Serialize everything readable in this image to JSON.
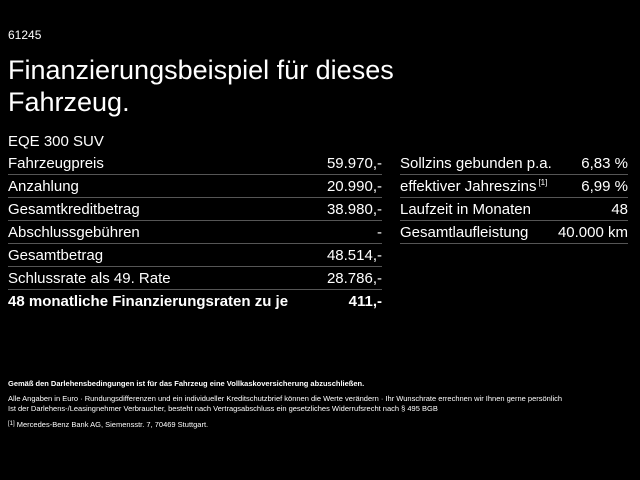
{
  "code": "61245",
  "title": "Finanzierungsbeispiel für dieses Fahrzeug.",
  "model": "EQE 300 SUV",
  "left_table": {
    "rows": [
      {
        "label": "Fahrzeugpreis",
        "value": "59.970,-"
      },
      {
        "label": "Anzahlung",
        "value": "20.990,-"
      },
      {
        "label": "Gesamtkreditbetrag",
        "value": "38.980,-"
      },
      {
        "label": "Abschlussgebühren",
        "value": "-"
      },
      {
        "label": "Gesamtbetrag",
        "value": "48.514,-"
      },
      {
        "label": "Schlussrate als 49. Rate",
        "value": "28.786,-"
      },
      {
        "label": "48 monatliche Finanzierungsraten zu je",
        "value": "411,-"
      }
    ]
  },
  "right_table": {
    "rows": [
      {
        "label": "Sollzins gebunden p.a.",
        "value": "6,83 %"
      },
      {
        "label": "effektiver Jahreszins",
        "note": "[1]",
        "value": "6,99 %"
      },
      {
        "label": "Laufzeit in Monaten",
        "value": "48"
      },
      {
        "label": "Gesamtlaufleistung",
        "value": "40.000 km"
      }
    ]
  },
  "footer": {
    "insurance": "Gemäß den Darlehensbedingungen ist für das Fahrzeug eine Vollkaskoversicherung abzuschließen.",
    "disclaimer_1": "Alle Angaben in Euro · Rundungsdifferenzen und ein individueller Kreditschutzbrief können die Werte verändern · Ihr Wunschrate errechnen wir Ihnen gerne persönlich",
    "disclaimer_2": "Ist der Darlehens-/Leasingnehmer Verbraucher, besteht nach Vertragsabschluss ein gesetzliches Widerrufsrecht nach § 495 BGB",
    "footnote_mark": "[1]",
    "footnote_text": "Mercedes-Benz Bank AG, Siemensstr. 7, 70469 Stuttgart."
  }
}
